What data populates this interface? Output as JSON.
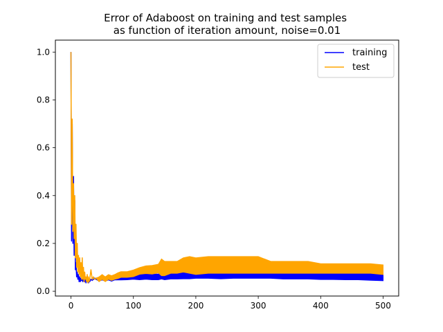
{
  "chart_data": {
    "type": "line",
    "title": "Error of Adaboost on training and test samples\nas function of iteration amount, noise=0.01",
    "xlabel": "",
    "ylabel": "",
    "xlim": [
      -25,
      525
    ],
    "ylim": [
      -0.02,
      1.05
    ],
    "xticks": [
      0,
      100,
      200,
      300,
      400,
      500
    ],
    "yticks": [
      0.0,
      0.2,
      0.4,
      0.6,
      0.8,
      1.0
    ],
    "grid": false,
    "legend": "top-right",
    "series": [
      {
        "name": "training",
        "color": "#0000ff",
        "line_width": 1.5,
        "x": [
          0,
          1,
          2,
          3,
          4,
          5,
          6,
          7,
          8,
          9,
          10,
          11,
          12,
          13,
          14,
          15,
          16,
          17,
          18,
          19,
          20,
          21,
          22,
          23,
          24,
          25,
          26,
          27,
          28,
          29,
          30,
          32,
          34,
          36,
          38,
          40,
          45,
          50,
          55,
          60,
          65,
          70,
          75,
          80,
          90,
          100,
          110,
          120,
          130,
          140,
          145,
          150,
          160,
          170,
          180,
          190,
          200,
          220,
          240,
          260,
          280,
          300,
          320,
          340,
          360,
          380,
          400,
          420,
          440,
          460,
          480,
          500
        ],
        "y": [
          1.0,
          0.21,
          0.7,
          0.2,
          0.48,
          0.15,
          0.38,
          0.09,
          0.12,
          0.06,
          0.08,
          0.05,
          0.07,
          0.04,
          0.06,
          0.04,
          0.055,
          0.045,
          0.05,
          0.04,
          0.06,
          0.045,
          0.04,
          0.05,
          0.035,
          0.045,
          0.04,
          0.05,
          0.035,
          0.045,
          0.04,
          0.05,
          0.045,
          0.05,
          0.055,
          0.05,
          0.05,
          0.055,
          0.05,
          0.055,
          0.05,
          0.055,
          0.055,
          0.055,
          0.058,
          0.06,
          0.06,
          0.062,
          0.06,
          0.06,
          0.065,
          0.062,
          0.065,
          0.065,
          0.068,
          0.068,
          0.07,
          0.07,
          0.068,
          0.07,
          0.07,
          0.07,
          0.068,
          0.065,
          0.065,
          0.065,
          0.063,
          0.063,
          0.062,
          0.062,
          0.06,
          0.058
        ],
        "band": [
          0,
          0,
          0,
          0,
          0,
          0,
          0,
          0,
          0,
          0,
          0,
          0,
          0,
          0,
          0,
          0,
          0,
          0,
          0,
          0,
          0,
          0,
          0,
          0,
          0,
          0,
          0,
          0,
          0,
          0,
          0,
          0,
          0,
          0,
          0,
          0,
          0.008,
          0.008,
          0.008,
          0.008,
          0.008,
          0.008,
          0.008,
          0.008,
          0.01,
          0.01,
          0.012,
          0.012,
          0.012,
          0.012,
          0.014,
          0.014,
          0.014,
          0.014,
          0.016,
          0.016,
          0.016,
          0.016,
          0.016,
          0.016,
          0.016,
          0.016,
          0.014,
          0.014,
          0.014,
          0.014,
          0.014,
          0.014,
          0.014,
          0.014,
          0.014,
          0.014
        ]
      },
      {
        "name": "test",
        "color": "#ffa500",
        "line_width": 1.5,
        "x": [
          0,
          1,
          2,
          3,
          4,
          5,
          6,
          7,
          8,
          9,
          10,
          11,
          12,
          13,
          14,
          15,
          16,
          17,
          18,
          19,
          20,
          21,
          22,
          23,
          24,
          25,
          26,
          27,
          28,
          29,
          30,
          32,
          34,
          36,
          38,
          40,
          45,
          50,
          55,
          60,
          65,
          70,
          75,
          80,
          90,
          100,
          110,
          120,
          130,
          140,
          145,
          150,
          160,
          170,
          180,
          190,
          200,
          220,
          240,
          260,
          280,
          300,
          320,
          340,
          360,
          380,
          400,
          420,
          440,
          460,
          480,
          500
        ],
        "y": [
          1.0,
          0.28,
          0.72,
          0.25,
          0.45,
          0.22,
          0.4,
          0.14,
          0.28,
          0.1,
          0.2,
          0.08,
          0.15,
          0.07,
          0.14,
          0.06,
          0.12,
          0.05,
          0.14,
          0.05,
          0.1,
          0.04,
          0.08,
          0.05,
          0.06,
          0.04,
          0.07,
          0.035,
          0.06,
          0.04,
          0.05,
          0.09,
          0.05,
          0.06,
          0.05,
          0.055,
          0.05,
          0.06,
          0.05,
          0.06,
          0.055,
          0.06,
          0.065,
          0.07,
          0.07,
          0.075,
          0.085,
          0.09,
          0.09,
          0.095,
          0.1,
          0.095,
          0.1,
          0.1,
          0.11,
          0.11,
          0.105,
          0.11,
          0.11,
          0.11,
          0.11,
          0.11,
          0.1,
          0.1,
          0.1,
          0.1,
          0.095,
          0.095,
          0.095,
          0.095,
          0.095,
          0.09
        ],
        "band": [
          0,
          0,
          0,
          0,
          0,
          0,
          0,
          0,
          0,
          0,
          0,
          0,
          0,
          0,
          0,
          0,
          0,
          0,
          0,
          0,
          0,
          0,
          0,
          0,
          0,
          0,
          0,
          0,
          0,
          0,
          0,
          0,
          0,
          0,
          0,
          0,
          0.01,
          0.01,
          0.01,
          0.01,
          0.01,
          0.01,
          0.012,
          0.012,
          0.012,
          0.014,
          0.014,
          0.016,
          0.018,
          0.018,
          0.035,
          0.03,
          0.025,
          0.025,
          0.03,
          0.035,
          0.035,
          0.035,
          0.035,
          0.035,
          0.035,
          0.035,
          0.025,
          0.025,
          0.025,
          0.025,
          0.02,
          0.02,
          0.02,
          0.02,
          0.02,
          0.02
        ]
      }
    ]
  }
}
